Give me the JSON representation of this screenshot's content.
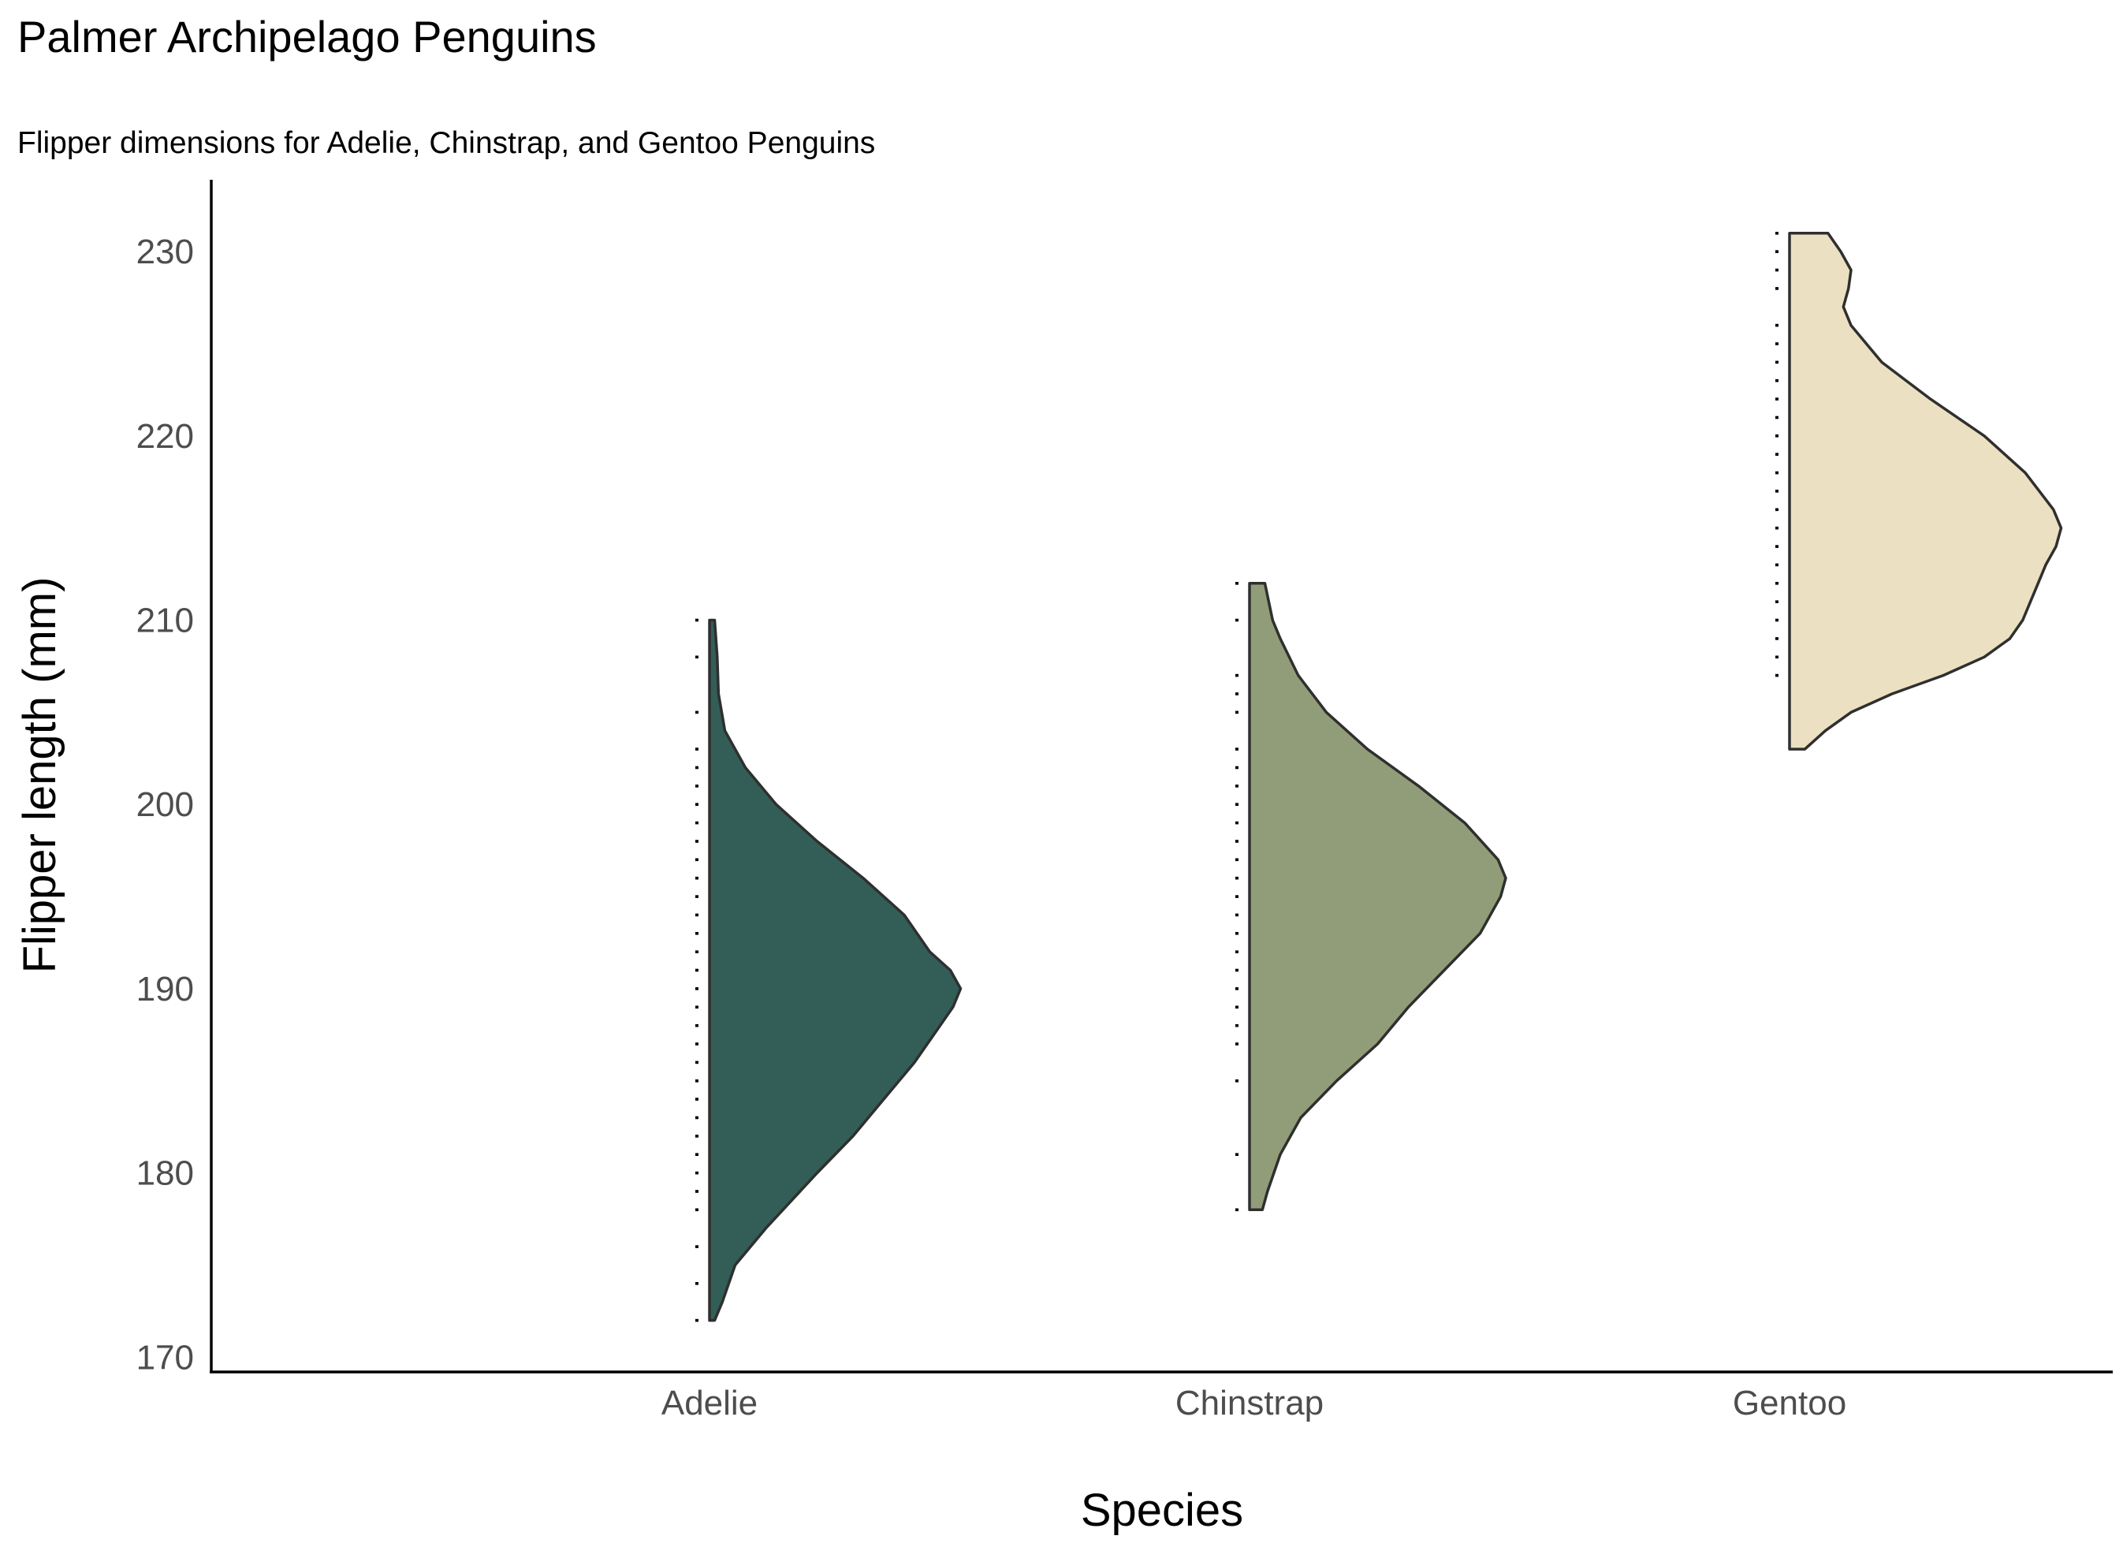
{
  "chart_data": {
    "type": "half-violin",
    "title": "Palmer Archipelago Penguins",
    "subtitle": "Flipper dimensions for Adelie, Chinstrap, and Gentoo Penguins",
    "xlabel": "Species",
    "ylabel": "Flipper length (mm)",
    "categories": [
      "Adelie",
      "Chinstrap",
      "Gentoo"
    ],
    "ylim": [
      169.2,
      233.9
    ],
    "yticks": [
      170,
      180,
      190,
      200,
      210,
      220,
      230
    ],
    "grid": false,
    "legend": "none",
    "series": [
      {
        "category": "Adelie",
        "color": "#325e57",
        "range": [
          172,
          210
        ],
        "density": [
          [
            172,
            0.02
          ],
          [
            173,
            0.05
          ],
          [
            175,
            0.1
          ],
          [
            177,
            0.22
          ],
          [
            180,
            0.42
          ],
          [
            182,
            0.56
          ],
          [
            184,
            0.68
          ],
          [
            186,
            0.8
          ],
          [
            188,
            0.9
          ],
          [
            189,
            0.95
          ],
          [
            190,
            0.98
          ],
          [
            191,
            0.94
          ],
          [
            192,
            0.86
          ],
          [
            194,
            0.76
          ],
          [
            196,
            0.6
          ],
          [
            198,
            0.42
          ],
          [
            200,
            0.26
          ],
          [
            202,
            0.14
          ],
          [
            204,
            0.06
          ],
          [
            206,
            0.035
          ],
          [
            208,
            0.03
          ],
          [
            210,
            0.02
          ]
        ],
        "dots": [
          172,
          174,
          176,
          178,
          179,
          180,
          181,
          182,
          183,
          184,
          185,
          186,
          187,
          188,
          189,
          190,
          191,
          192,
          193,
          194,
          195,
          196,
          197,
          198,
          199,
          200,
          201,
          202,
          203,
          205,
          208,
          210
        ]
      },
      {
        "category": "Chinstrap",
        "color": "#919d79",
        "range": [
          178,
          212
        ],
        "density": [
          [
            178,
            0.05
          ],
          [
            179,
            0.07
          ],
          [
            181,
            0.12
          ],
          [
            183,
            0.2
          ],
          [
            185,
            0.34
          ],
          [
            187,
            0.5
          ],
          [
            189,
            0.62
          ],
          [
            191,
            0.76
          ],
          [
            193,
            0.9
          ],
          [
            195,
            0.98
          ],
          [
            196,
            1.0
          ],
          [
            197,
            0.97
          ],
          [
            199,
            0.84
          ],
          [
            201,
            0.66
          ],
          [
            203,
            0.46
          ],
          [
            205,
            0.3
          ],
          [
            207,
            0.19
          ],
          [
            209,
            0.12
          ],
          [
            210,
            0.09
          ],
          [
            212,
            0.06
          ]
        ],
        "dots": [
          178,
          181,
          185,
          187,
          188,
          189,
          190,
          191,
          192,
          193,
          194,
          195,
          196,
          197,
          198,
          199,
          200,
          201,
          202,
          203,
          205,
          206,
          207,
          210,
          212
        ]
      },
      {
        "category": "Gentoo",
        "color": "#ebe0c2",
        "range": [
          203,
          231
        ],
        "density": [
          [
            203,
            0.06
          ],
          [
            204,
            0.14
          ],
          [
            205,
            0.24
          ],
          [
            206,
            0.4
          ],
          [
            207,
            0.6
          ],
          [
            208,
            0.76
          ],
          [
            209,
            0.86
          ],
          [
            210,
            0.91
          ],
          [
            212,
            0.97
          ],
          [
            213,
            1.0
          ],
          [
            214,
            1.04
          ],
          [
            215,
            1.06
          ],
          [
            216,
            1.03
          ],
          [
            218,
            0.92
          ],
          [
            220,
            0.76
          ],
          [
            222,
            0.55
          ],
          [
            224,
            0.36
          ],
          [
            226,
            0.24
          ],
          [
            227,
            0.21
          ],
          [
            228,
            0.23
          ],
          [
            229,
            0.24
          ],
          [
            230,
            0.2
          ],
          [
            231,
            0.15
          ]
        ],
        "dots": [
          207,
          208,
          209,
          210,
          211,
          212,
          213,
          214,
          215,
          216,
          217,
          218,
          219,
          220,
          221,
          222,
          223,
          224,
          225,
          226,
          228,
          229,
          230,
          231
        ]
      }
    ]
  }
}
